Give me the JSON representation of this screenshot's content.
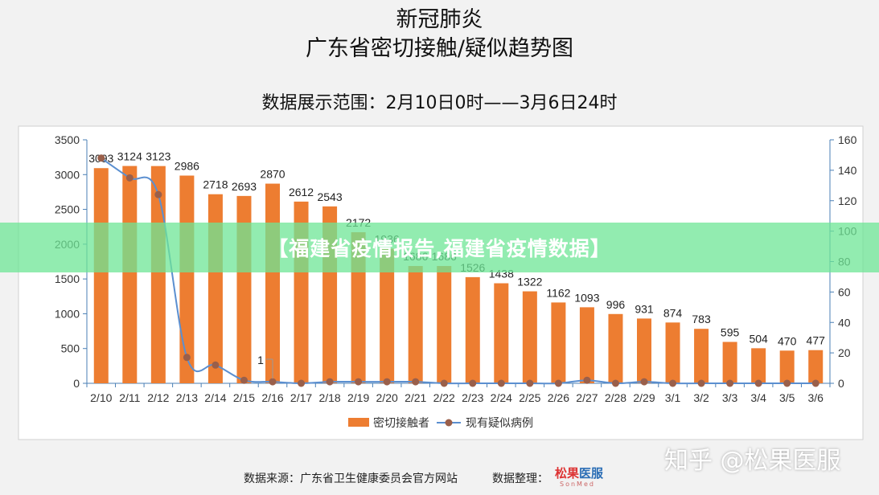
{
  "header": {
    "title_line1": "新冠肺炎",
    "title_line2": "广东省密切接触/疑似趋势图",
    "range": "数据展示范围：2月10日0时——3月6日24时"
  },
  "banner": {
    "text": "【福建省疫情报告,福建省疫情数据】"
  },
  "watermark": {
    "text": "知乎 @松果医服"
  },
  "footer": {
    "source": "数据来源：广东省卫生健康委员会官方网站",
    "organizer_label": "数据整理：",
    "logo_text_a": "松果",
    "logo_text_b": "医服",
    "logo_sub": "SonMed"
  },
  "chart_data": {
    "type": "bar",
    "categories": [
      "2/10",
      "2/11",
      "2/12",
      "2/13",
      "2/14",
      "2/15",
      "2/16",
      "2/17",
      "2/18",
      "2/19",
      "2/20",
      "2/21",
      "2/22",
      "2/23",
      "2/24",
      "2/25",
      "2/26",
      "2/27",
      "2/28",
      "2/29",
      "3/1",
      "3/2",
      "3/3",
      "3/4",
      "3/5",
      "3/6"
    ],
    "series": [
      {
        "name": "密切接触者",
        "type": "bar",
        "axis": "left",
        "color": "#ed7d31",
        "values": [
          3093,
          3124,
          3123,
          2986,
          2718,
          2693,
          2870,
          2612,
          2543,
          2172,
          1936,
          1686,
          1686,
          1526,
          1438,
          1322,
          1162,
          1093,
          996,
          931,
          874,
          783,
          595,
          504,
          470,
          477
        ],
        "labels": [
          "3093",
          "3124",
          "3123",
          "2986",
          "2718",
          "2693",
          "2870",
          "2612",
          "2543",
          "2172",
          "1936",
          "1686",
          "1686",
          "1526",
          "1438",
          "1322",
          "1162",
          "1093",
          "996",
          "931",
          "874",
          "783",
          "595",
          "504",
          "470",
          "477"
        ]
      },
      {
        "name": "现有疑似病例",
        "type": "line",
        "axis": "right",
        "color": "#5b8fd0",
        "marker_color": "#9a5f4a",
        "values": [
          148,
          135,
          124,
          17,
          12,
          2,
          1,
          0,
          1,
          1,
          1,
          1,
          0,
          0,
          0,
          0,
          0,
          2,
          0,
          1,
          0,
          0,
          0,
          0,
          0,
          0
        ]
      }
    ],
    "annotation": {
      "text": "1",
      "category": "2/16"
    },
    "y_left": {
      "ticks": [
        0,
        500,
        1000,
        1500,
        2000,
        2500,
        3000,
        3500
      ],
      "ylim": [
        0,
        3500
      ]
    },
    "y_right": {
      "ticks": [
        0,
        20,
        40,
        60,
        80,
        100,
        120,
        140,
        160
      ],
      "ylim": [
        0,
        160
      ]
    },
    "legend_position": "bottom",
    "grid": false
  }
}
